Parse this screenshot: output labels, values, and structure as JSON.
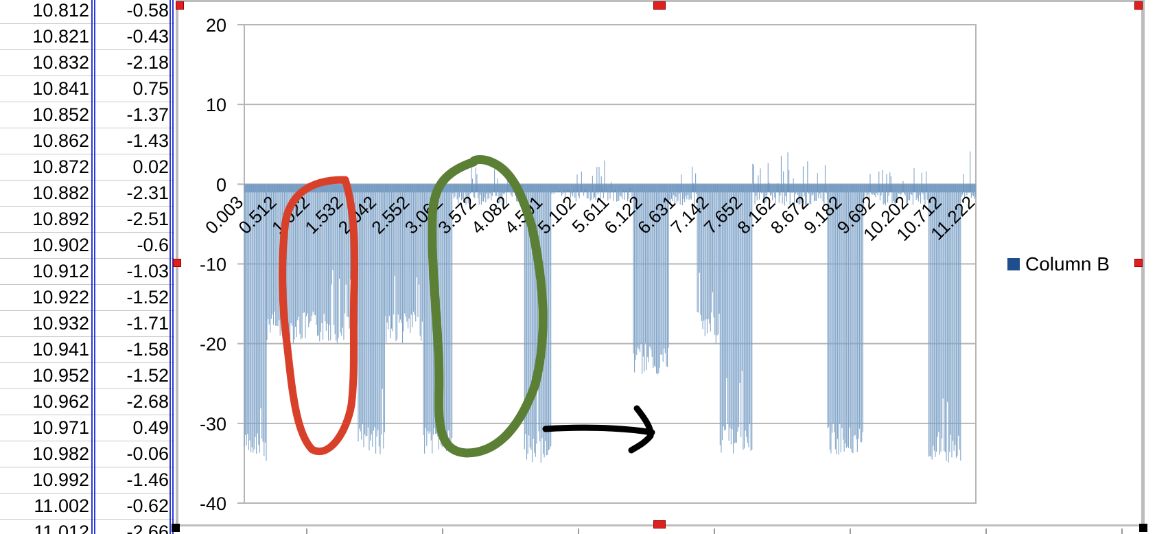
{
  "spreadsheet": {
    "rows": [
      {
        "a": "10.812",
        "b": "-0.58"
      },
      {
        "a": "10.821",
        "b": "-0.43"
      },
      {
        "a": "10.832",
        "b": "-2.18"
      },
      {
        "a": "10.841",
        "b": "0.75"
      },
      {
        "a": "10.852",
        "b": "-1.37"
      },
      {
        "a": "10.862",
        "b": "-1.43"
      },
      {
        "a": "10.872",
        "b": "0.02"
      },
      {
        "a": "10.882",
        "b": "-2.31"
      },
      {
        "a": "10.892",
        "b": "-2.51"
      },
      {
        "a": "10.902",
        "b": "-0.6"
      },
      {
        "a": "10.912",
        "b": "-1.03"
      },
      {
        "a": "10.922",
        "b": "-1.52"
      },
      {
        "a": "10.932",
        "b": "-1.71"
      },
      {
        "a": "10.941",
        "b": "-1.58"
      },
      {
        "a": "10.952",
        "b": "-1.52"
      },
      {
        "a": "10.962",
        "b": "-2.68"
      },
      {
        "a": "10.971",
        "b": "0.49"
      },
      {
        "a": "10.982",
        "b": "-0.06"
      },
      {
        "a": "10.992",
        "b": "-1.46"
      },
      {
        "a": "11.002",
        "b": "-0.62"
      },
      {
        "a": "11.012",
        "b": "-2.66"
      }
    ]
  },
  "chart_data": {
    "type": "bar",
    "title": "",
    "xlabel": "",
    "ylabel": "",
    "ylim": [
      -40,
      20
    ],
    "y_ticks": [
      "20",
      "10",
      "0",
      "-10",
      "-20",
      "-30",
      "-40"
    ],
    "x_tick_labels": [
      "0.003",
      "0.512",
      "1.022",
      "1.532",
      "2.042",
      "2.552",
      "3.062",
      "3.572",
      "4.082",
      "4.591",
      "5.102",
      "5.611",
      "6.122",
      "6.631",
      "7.142",
      "7.652",
      "8.162",
      "8.672",
      "9.182",
      "9.692",
      "10.202",
      "10.712",
      "11.222"
    ],
    "x_range": [
      0.003,
      11.222
    ],
    "grid": true,
    "legend_position": "right",
    "series": [
      {
        "name": "Column B",
        "color": "#1f4e8c",
        "bar_color": "#7fa3c8",
        "segments": [
          {
            "x_start": 0.003,
            "x_end": 0.35,
            "value": -31,
            "kind": "deep"
          },
          {
            "x_start": 0.35,
            "x_end": 1.75,
            "value": -16,
            "kind": "mid"
          },
          {
            "x_start": 1.75,
            "x_end": 2.16,
            "value": -30,
            "kind": "deep"
          },
          {
            "x_start": 2.16,
            "x_end": 2.75,
            "value": -16,
            "kind": "mid"
          },
          {
            "x_start": 2.75,
            "x_end": 3.2,
            "value": -30,
            "kind": "deep"
          },
          {
            "x_start": 3.2,
            "x_end": 4.3,
            "value": -1,
            "kind": "flat"
          },
          {
            "x_start": 4.3,
            "x_end": 4.72,
            "value": -31,
            "kind": "deep"
          },
          {
            "x_start": 4.72,
            "x_end": 5.97,
            "value": -0.5,
            "kind": "flat",
            "peak": 3
          },
          {
            "x_start": 5.97,
            "x_end": 6.52,
            "value": -20,
            "kind": "deep"
          },
          {
            "x_start": 6.52,
            "x_end": 6.95,
            "value": -1,
            "kind": "flat",
            "peak": 3
          },
          {
            "x_start": 6.95,
            "x_end": 7.3,
            "value": -16,
            "kind": "mid"
          },
          {
            "x_start": 7.3,
            "x_end": 7.8,
            "value": -30,
            "kind": "deep"
          },
          {
            "x_start": 7.8,
            "x_end": 8.95,
            "value": -1,
            "kind": "flat",
            "peak": 8
          },
          {
            "x_start": 8.95,
            "x_end": 9.5,
            "value": -30,
            "kind": "deep"
          },
          {
            "x_start": 9.5,
            "x_end": 10.5,
            "value": -1,
            "kind": "flat",
            "peak": 2
          },
          {
            "x_start": 10.5,
            "x_end": 11.0,
            "value": -31,
            "kind": "deep"
          },
          {
            "x_start": 11.0,
            "x_end": 11.222,
            "value": -1,
            "kind": "flat",
            "peak": 7
          }
        ]
      }
    ],
    "annotations": [
      {
        "kind": "ellipse",
        "color": "#d8402a"
      },
      {
        "kind": "ellipse",
        "color": "#5a7f35"
      },
      {
        "kind": "arrow",
        "color": "#000000"
      }
    ]
  },
  "legend": {
    "label": "Column B",
    "color": "#1f4e8c"
  }
}
